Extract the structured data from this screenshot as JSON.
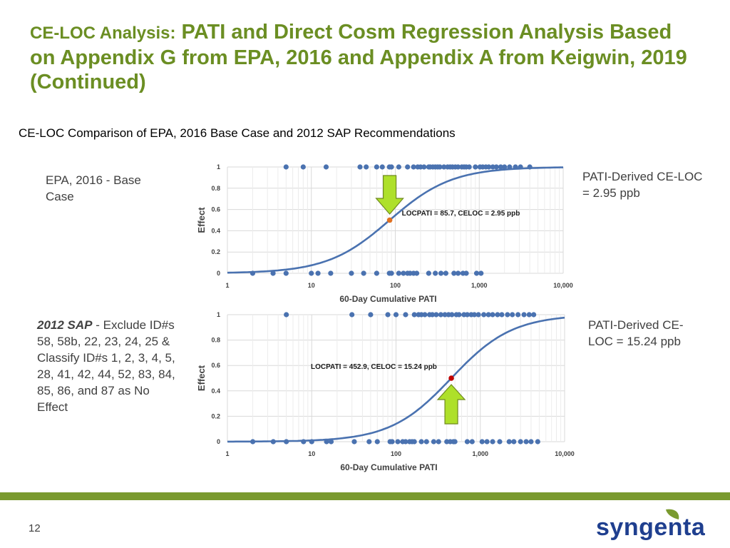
{
  "slide": {
    "title_lead": "CE-LOC Analysis:",
    "title_rest": " PATI and Direct Cosm Regression Analysis Based on Appendix G from EPA, 2016 and Appendix A from Keigwin, 2019 (Continued)",
    "subtitle": "CE-LOC Comparison of EPA, 2016 Base Case and 2012 SAP Recommendations",
    "page_number": "12",
    "logo": "syngenta",
    "accent": "#7a9a2f",
    "title_color": "#6b8e23"
  },
  "panel1": {
    "left_label": "EPA, 2016 - Base Case",
    "right_label": "PATI-Derived CE-LOC = 2.95 ppb"
  },
  "panel2": {
    "left_label_bold": "2012 SAP",
    "left_label_rest": " - Exclude ID#s 58, 58b, 22, 23, 24, 25 & Classify ID#s 1, 2, 3, 4, 5, 28, 41, 42, 44, 52, 83, 84, 85, 86, and 87 as No Effect",
    "right_label": "PATI-Derived CE-LOC = 15.24 ppb"
  },
  "chart_data": [
    {
      "type": "scatter",
      "xlabel": "60-Day Cumulative PATI",
      "ylabel": "Effect",
      "x_scale": "log",
      "xlim": [
        1,
        10000
      ],
      "ylim": [
        0,
        1
      ],
      "x_ticks": [
        "1",
        "10",
        "100",
        "1,000",
        "10,000"
      ],
      "y_ticks": [
        "0",
        "0.2",
        "0.4",
        "0.6",
        "0.8",
        "1"
      ],
      "grid": true,
      "annotation": "LOCPATI = 85.7, CELOC = 2.95 ppb",
      "marker": {
        "x": 85.7,
        "y": 0.5,
        "color": "#e07020"
      },
      "curve": {
        "midpoint": 85.7,
        "slope": 1.17,
        "color": "#4a72b0"
      },
      "points_color": "#4a72b0",
      "effect_points_x": [
        5,
        8,
        15,
        38,
        45,
        60,
        70,
        85,
        90,
        110,
        140,
        165,
        185,
        200,
        220,
        250,
        260,
        280,
        300,
        320,
        340,
        380,
        420,
        450,
        480,
        520,
        560,
        620,
        660,
        700,
        760,
        900,
        1020,
        1100,
        1200,
        1300,
        1450,
        1600,
        1800,
        2000,
        2300,
        2700,
        3100,
        4000
      ],
      "noeffect_points_x": [
        2,
        3.5,
        5,
        10,
        12,
        17,
        30,
        42,
        60,
        85,
        90,
        110,
        125,
        140,
        150,
        165,
        180,
        250,
        300,
        350,
        400,
        500,
        560,
        640,
        700,
        930,
        1050
      ]
    },
    {
      "type": "scatter",
      "xlabel": "60-Day Cumulative PATI",
      "ylabel": "Effect",
      "x_scale": "log",
      "xlim": [
        1,
        10000
      ],
      "ylim": [
        0,
        1
      ],
      "x_ticks": [
        "1",
        "10",
        "100",
        "1,000",
        "10,000"
      ],
      "y_ticks": [
        "0",
        "0.2",
        "0.4",
        "0.6",
        "0.8",
        "1"
      ],
      "grid": true,
      "annotation": "LOCPATI = 452.9, CELOC = 15.24 ppb",
      "marker": {
        "x": 452.9,
        "y": 0.5,
        "color": "#c00000"
      },
      "curve": {
        "midpoint": 452.9,
        "slope": 1.2,
        "color": "#4a72b0"
      },
      "points_color": "#4a72b0",
      "effect_points_x": [
        5,
        30,
        50,
        80,
        100,
        130,
        165,
        185,
        200,
        220,
        250,
        270,
        300,
        340,
        380,
        420,
        460,
        520,
        560,
        640,
        700,
        780,
        850,
        950,
        1100,
        1250,
        1400,
        1600,
        1800,
        2100,
        2400,
        2800,
        3300,
        3800,
        4300
      ],
      "noeffect_points_x": [
        2,
        3.5,
        5,
        8,
        10,
        15,
        17,
        32,
        48,
        60,
        85,
        90,
        105,
        120,
        130,
        145,
        155,
        165,
        200,
        230,
        280,
        320,
        400,
        440,
        480,
        500,
        700,
        800,
        1050,
        1200,
        1400,
        1700,
        2200,
        2500,
        3000,
        3500,
        4000,
        4800
      ]
    }
  ]
}
